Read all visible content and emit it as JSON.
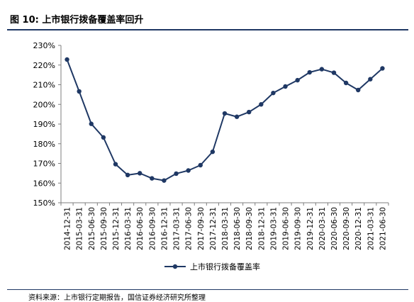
{
  "header": {
    "title": "图 10:  上市银行拨备覆盖率回升"
  },
  "footer": {
    "source": "资料来源：上市银行定期报告，国信证券经济研究所整理"
  },
  "colors": {
    "series": "#1f3864",
    "rule": "#1f3864"
  },
  "chart_data": {
    "type": "line",
    "title": "",
    "xlabel": "",
    "ylabel": "",
    "ylim": [
      150,
      230
    ],
    "ytick_step": 10,
    "y_suffix": "%",
    "grid": false,
    "legend_position": "bottom",
    "categories": [
      "2014-12-31",
      "2015-03-31",
      "2015-06-30",
      "2015-09-30",
      "2015-12-31",
      "2016-03-31",
      "2016-06-30",
      "2016-09-30",
      "2016-12-31",
      "2017-03-31",
      "2017-06-30",
      "2017-09-30",
      "2017-12-31",
      "2018-03-31",
      "2018-06-30",
      "2018-09-30",
      "2018-12-31",
      "2019-03-31",
      "2019-06-30",
      "2019-09-30",
      "2019-12-31",
      "2020-03-31",
      "2020-06-30",
      "2020-09-30",
      "2020-12-31",
      "2021-03-31",
      "2021-06-30"
    ],
    "series": [
      {
        "name": "上市银行拨备覆盖率",
        "values": [
          222.8,
          206.6,
          190.1,
          183.2,
          169.6,
          164.1,
          165.0,
          162.4,
          161.3,
          164.8,
          166.4,
          169.1,
          175.9,
          195.4,
          193.7,
          196.1,
          200.0,
          205.8,
          209.1,
          212.3,
          216.3,
          217.9,
          216.1,
          210.9,
          207.3,
          212.8,
          218.3
        ]
      }
    ]
  }
}
